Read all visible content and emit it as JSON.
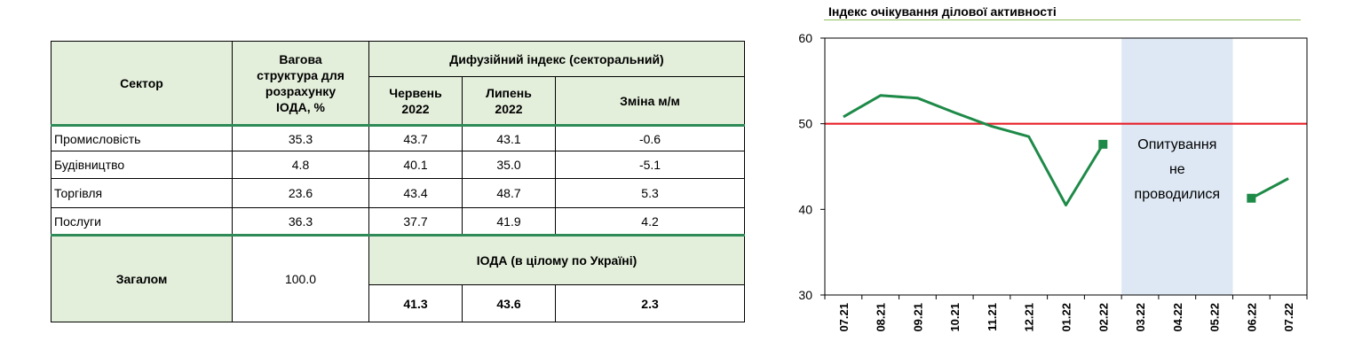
{
  "table": {
    "header": {
      "sector": "Сектор",
      "weight": [
        "Вагова",
        "структура для",
        "розрахунку",
        "ІОДА, %"
      ],
      "diffusion": "Дифузійний індекс (секторальний)",
      "june": [
        "Червень",
        "2022"
      ],
      "july": [
        "Липень",
        "2022"
      ],
      "change": "Зміна м/м"
    },
    "rows": [
      {
        "sector": "Промисловість",
        "weight": "35.3",
        "june": "43.7",
        "july": "43.1",
        "change": "-0.6"
      },
      {
        "sector": "Будівництво",
        "weight": "4.8",
        "june": "40.1",
        "july": "35.0",
        "change": "-5.1"
      },
      {
        "sector": "Торгівля",
        "weight": "23.6",
        "june": "43.4",
        "july": "48.7",
        "change": "5.3"
      },
      {
        "sector": "Послуги",
        "weight": "36.3",
        "june": "37.7",
        "july": "41.9",
        "change": "4.2"
      }
    ],
    "total": {
      "label": "Загалом",
      "weight": "100.0",
      "ioda_label": "ІОДА (в цілому по Україні)",
      "june": "41.3",
      "july": "43.6",
      "change": "2.3"
    }
  },
  "chart_data": {
    "type": "line",
    "title": "Індекс очікування ділової активності",
    "categories": [
      "07.21",
      "08.21",
      "09.21",
      "10.21",
      "11.21",
      "12.21",
      "01.22",
      "02.22",
      "03.22",
      "04.22",
      "05.22",
      "06.22",
      "07.22"
    ],
    "series": [
      {
        "values": [
          50.8,
          53.3,
          53.0,
          51.3,
          49.7,
          48.5,
          40.5,
          47.6,
          null,
          null,
          null,
          41.3,
          43.6
        ],
        "color": "#1e8a48"
      }
    ],
    "reference_line": {
      "value": 50,
      "color": "#e8202a"
    },
    "shaded_region": {
      "from": "03.22",
      "to": "05.22",
      "color": "#dde8f4",
      "label": [
        "Опитування",
        "не",
        "проводилися"
      ]
    },
    "ylim": [
      30,
      60
    ],
    "yticks": [
      30,
      40,
      50,
      60
    ],
    "grid": false
  }
}
